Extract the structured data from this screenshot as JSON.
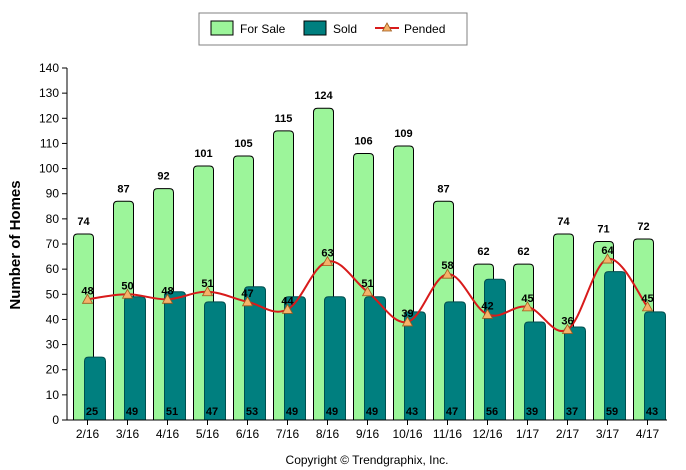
{
  "chart_data": {
    "type": "bar",
    "xlabel": "",
    "ylabel": "Number of Homes",
    "ylim": [
      0,
      140
    ],
    "ytick_step": 10,
    "categories": [
      "2/16",
      "3/16",
      "4/16",
      "5/16",
      "6/16",
      "7/16",
      "8/16",
      "9/16",
      "10/16",
      "11/16",
      "12/16",
      "1/17",
      "2/17",
      "3/17",
      "4/17"
    ],
    "series": [
      {
        "name": "For Sale",
        "kind": "bar",
        "color": "#9cf59a",
        "values": [
          74,
          87,
          92,
          101,
          105,
          115,
          124,
          106,
          109,
          87,
          62,
          62,
          74,
          71,
          72
        ]
      },
      {
        "name": "Sold",
        "kind": "bar",
        "color": "#007f7f",
        "values": [
          25,
          49,
          51,
          47,
          53,
          49,
          49,
          49,
          43,
          47,
          56,
          39,
          37,
          59,
          43
        ]
      },
      {
        "name": "Pended",
        "kind": "line",
        "color": "#d81b1b",
        "marker_color": "#f5b26a",
        "values": [
          48,
          50,
          48,
          51,
          47,
          44,
          63,
          51,
          39,
          58,
          42,
          45,
          36,
          64,
          45
        ]
      }
    ],
    "grid": false,
    "legend_position": "top-center",
    "footer": "Copyright © Trendgraphix, Inc."
  }
}
